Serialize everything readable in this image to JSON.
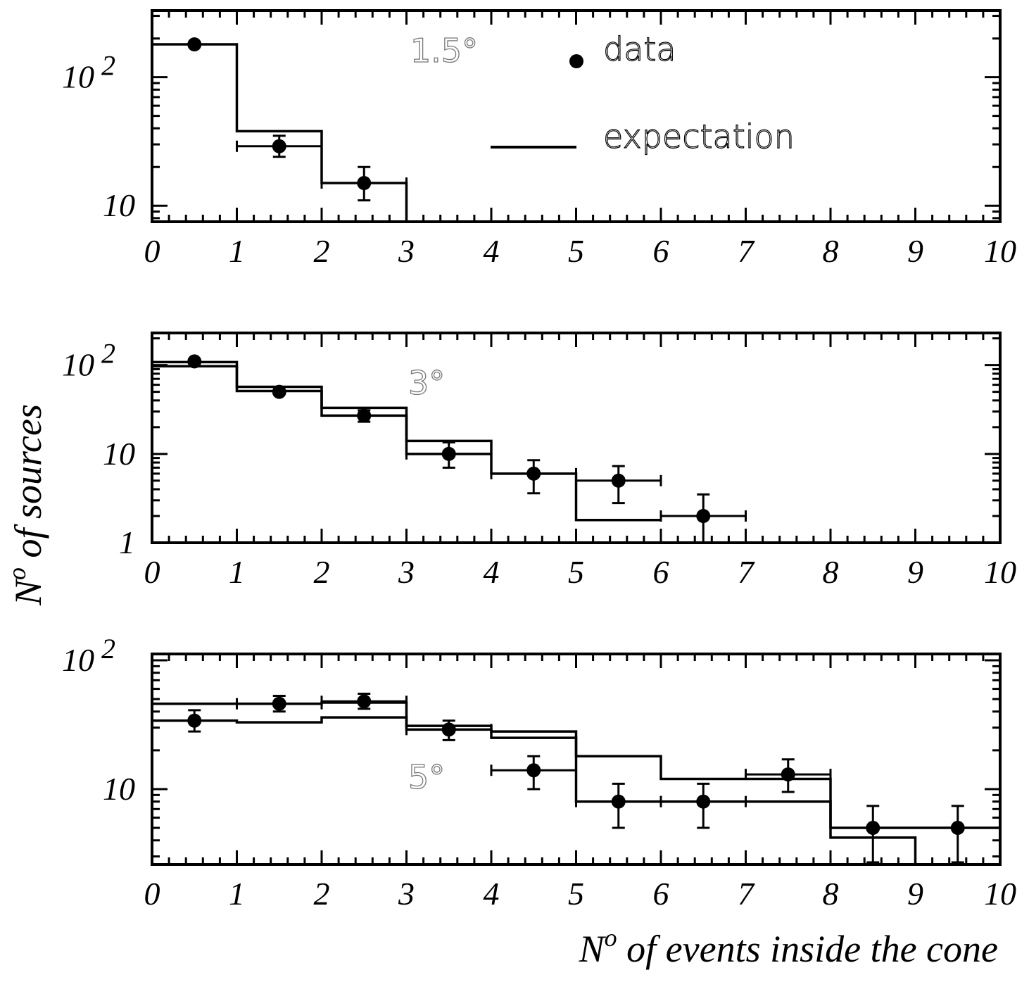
{
  "chart_data": [
    {
      "type": "scatter",
      "panel_label": "1.5°",
      "x_scale": "linear",
      "y_scale": "log",
      "xlim": [
        0,
        10
      ],
      "ylim": [
        7.5,
        330
      ],
      "x_ticks": [
        "0",
        "1",
        "2",
        "3",
        "4",
        "5",
        "6",
        "7",
        "8",
        "9",
        "10"
      ],
      "y_ticks": [
        {
          "value": 10,
          "label": "10"
        },
        {
          "value": 100,
          "label": "10",
          "exponent": "2"
        }
      ],
      "expectation": {
        "name": "expectation",
        "edges": [
          0,
          1,
          2,
          3
        ],
        "values": [
          180,
          38,
          15
        ]
      },
      "data": {
        "name": "data",
        "x": [
          0.5,
          1.5,
          2.5
        ],
        "y": [
          180,
          29,
          15
        ],
        "y_err_low": [
          0,
          5,
          4
        ],
        "y_err_high": [
          0,
          6,
          5
        ],
        "x_err": [
          0,
          0.5,
          0.5
        ]
      },
      "legend": {
        "position": "top-right",
        "entries": [
          "data",
          "expectation"
        ]
      }
    },
    {
      "type": "scatter",
      "panel_label": "3°",
      "x_scale": "linear",
      "y_scale": "log",
      "xlim": [
        0,
        10
      ],
      "ylim": [
        1,
        230
      ],
      "x_ticks": [
        "0",
        "1",
        "2",
        "3",
        "4",
        "5",
        "6",
        "7",
        "8",
        "9",
        "10"
      ],
      "y_ticks": [
        {
          "value": 1,
          "label": "1"
        },
        {
          "value": 10,
          "label": "10"
        },
        {
          "value": 100,
          "label": "10",
          "exponent": "2"
        }
      ],
      "expectation_1": {
        "edges": [
          0,
          1,
          2,
          3,
          4,
          5,
          6
        ],
        "values": [
          108,
          57,
          33,
          14,
          6,
          1.8
        ]
      },
      "expectation_2": {
        "edges": [
          0,
          1,
          2,
          3,
          4
        ],
        "values": [
          97,
          51,
          27,
          10
        ]
      },
      "data": {
        "x": [
          0.5,
          1.5,
          2.5,
          3.5,
          4.5,
          5.5,
          6.5
        ],
        "y": [
          110,
          50,
          27,
          10,
          6,
          5,
          2
        ],
        "y_err_low": [
          0,
          0,
          4,
          3,
          2.4,
          2.2,
          1
        ],
        "y_err_high": [
          0,
          0,
          4,
          3.5,
          2.5,
          2.3,
          1.5
        ],
        "x_err": [
          0,
          0,
          0,
          0.5,
          0.5,
          0.5,
          0.5
        ]
      }
    },
    {
      "type": "scatter",
      "panel_label": "5°",
      "x_scale": "linear",
      "y_scale": "log",
      "xlim": [
        0,
        10
      ],
      "ylim": [
        2.6,
        112
      ],
      "x_ticks": [
        "0",
        "1",
        "2",
        "3",
        "4",
        "5",
        "6",
        "7",
        "8",
        "9",
        "10"
      ],
      "y_ticks": [
        {
          "value": 10,
          "label": "10"
        },
        {
          "value": 100,
          "label": "10",
          "exponent": "2"
        }
      ],
      "expectation_1": {
        "edges": [
          0,
          1,
          2,
          3,
          4,
          5,
          6,
          7,
          8,
          9,
          10
        ],
        "values": [
          46,
          46,
          47,
          31,
          25,
          18,
          12,
          12,
          5,
          5
        ]
      },
      "expectation_2": {
        "edges": [
          0,
          1,
          2,
          3,
          4,
          5,
          6,
          7,
          8,
          9
        ],
        "values": [
          34,
          33,
          36,
          29,
          28,
          8,
          8,
          8,
          4.2
        ]
      },
      "data": {
        "x": [
          0.5,
          1.5,
          2.5,
          3.5,
          4.5,
          5.5,
          6.5,
          7.5,
          8.5,
          9.5
        ],
        "y": [
          34,
          46,
          48,
          29,
          14,
          8,
          8,
          13,
          5,
          5
        ],
        "y_err_low": [
          6,
          6,
          6,
          5,
          4,
          3,
          3,
          3.5,
          2.3,
          2.3
        ],
        "y_err_high": [
          7,
          7,
          7,
          5,
          4,
          3,
          3,
          4,
          2.4,
          2.4
        ],
        "x_err": [
          0,
          0.5,
          0.5,
          0.5,
          0.5,
          0.5,
          0.5,
          0.5,
          0,
          0
        ]
      }
    }
  ],
  "ylabel": {
    "main": "N",
    "sup": "o",
    "rest": " of sources"
  },
  "xlabel": {
    "main": "N",
    "sup": "o",
    "rest": " of events inside the cone"
  }
}
